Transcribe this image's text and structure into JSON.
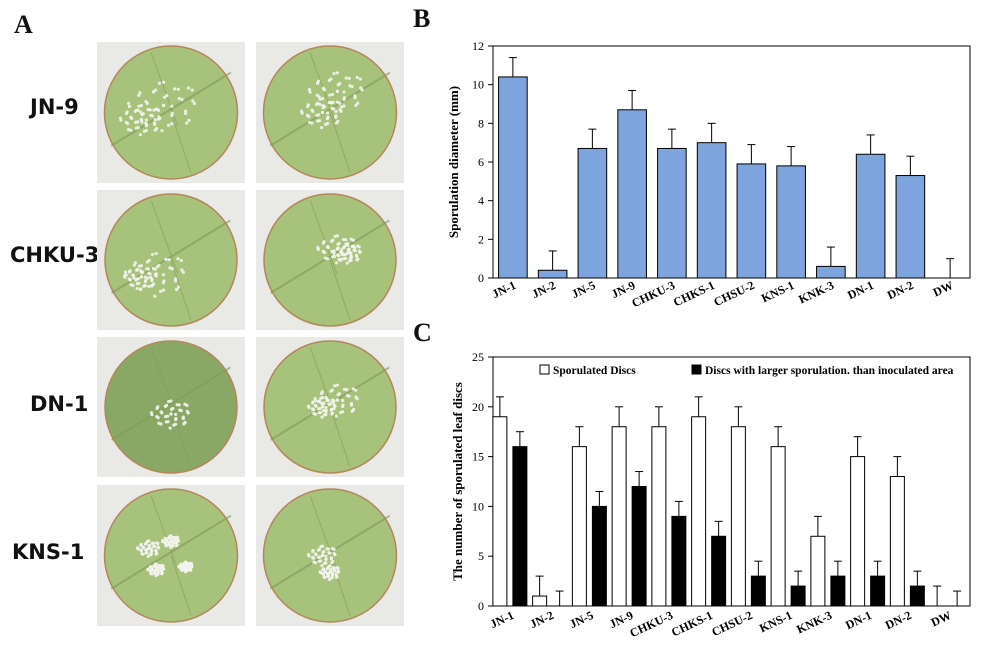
{
  "panel_labels": {
    "a": "A",
    "b": "B",
    "c": "C"
  },
  "photo_rows": [
    {
      "label": "JN-9"
    },
    {
      "label": "CHKU-3"
    },
    {
      "label": "DN-1"
    },
    {
      "label": "KNS-1"
    }
  ],
  "colors": {
    "bar_blue": "#7da4dc",
    "leaf_green": "#a7c27a",
    "leaf_dark": "#7f9a58",
    "spore": "#f3f3ee",
    "black": "#000000"
  },
  "chart_data": [
    {
      "type": "bar",
      "panel": "B",
      "categories": [
        "JN-1",
        "JN-2",
        "JN-5",
        "JN-9",
        "CHKU-3",
        "CHKS-1",
        "CHSU-2",
        "KNS-1",
        "KNK-3",
        "DN-1",
        "DN-2",
        "DW"
      ],
      "series": [
        {
          "values": [
            10.4,
            0.4,
            6.7,
            8.7,
            6.7,
            7.0,
            5.9,
            5.8,
            0.6,
            6.4,
            5.3,
            0
          ],
          "errors": [
            1.0,
            1.0,
            1.0,
            1.0,
            1.0,
            1.0,
            1.0,
            1.0,
            1.0,
            1.0,
            1.0,
            1.0
          ]
        }
      ],
      "ylabel": "Sporulation diameter (mm)",
      "ylim": [
        0,
        12
      ],
      "yticks": [
        0,
        2,
        4,
        6,
        8,
        10,
        12
      ]
    },
    {
      "type": "bar",
      "panel": "C",
      "categories": [
        "JN-1",
        "JN-2",
        "JN-5",
        "JN-9",
        "CHKU-3",
        "CHKS-1",
        "CHSU-2",
        "KNS-1",
        "KNK-3",
        "DN-1",
        "DN-2",
        "DW"
      ],
      "series": [
        {
          "name": "Sporulated Discs",
          "values": [
            19,
            1,
            16,
            18,
            18,
            19,
            18,
            16,
            7,
            15,
            13,
            0
          ],
          "errors": [
            2,
            2,
            2,
            2,
            2,
            2,
            2,
            2,
            2,
            2,
            2,
            2
          ]
        },
        {
          "name": "Discs with larger sporulation. than inoculated area",
          "values": [
            16,
            0,
            10,
            12,
            9,
            7,
            3,
            2,
            3,
            3,
            2,
            0
          ],
          "errors": [
            1.5,
            1.5,
            1.5,
            1.5,
            1.5,
            1.5,
            1.5,
            1.5,
            1.5,
            1.5,
            1.5,
            1.5
          ]
        }
      ],
      "ylabel": "The number of sporulated leaf discs",
      "ylim": [
        0,
        25
      ],
      "yticks": [
        0,
        5,
        10,
        15,
        20,
        25
      ],
      "legend": "top"
    }
  ]
}
